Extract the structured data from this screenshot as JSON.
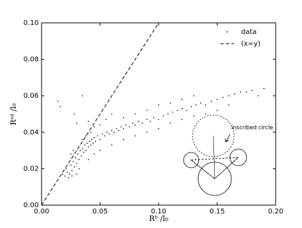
{
  "chart_data": {
    "type": "scatter",
    "xlabel": "Rᵇ /l₀",
    "ylabel": "Rˢᵈ /l₀",
    "xlim": [
      0,
      0.2
    ],
    "ylim": [
      0,
      0.1
    ],
    "xticks": [
      {
        "value": 0,
        "label": "0.00"
      },
      {
        "value": 0.05,
        "label": "0.05"
      },
      {
        "value": 0.1,
        "label": "0.10"
      },
      {
        "value": 0.15,
        "label": "0.15"
      },
      {
        "value": 0.2,
        "label": "0.20"
      }
    ],
    "yticks": [
      {
        "value": 0,
        "label": "0.00"
      },
      {
        "value": 0.02,
        "label": "0.02"
      },
      {
        "value": 0.04,
        "label": "0.04"
      },
      {
        "value": 0.06,
        "label": "0.06"
      },
      {
        "value": 0.08,
        "label": "0.08"
      },
      {
        "value": 0.1,
        "label": "0.10"
      }
    ],
    "legend": "upper right",
    "annotation": "inscribed circle",
    "series": [
      {
        "name": "data",
        "color": "#000000",
        "style": "points",
        "x": [
          0.018,
          0.02,
          0.022,
          0.021,
          0.024,
          0.025,
          0.026,
          0.027,
          0.028,
          0.029,
          0.03,
          0.031,
          0.032,
          0.033,
          0.034,
          0.035,
          0.036,
          0.037,
          0.038,
          0.039,
          0.04,
          0.041,
          0.042,
          0.043,
          0.044,
          0.045,
          0.046,
          0.048,
          0.05,
          0.052,
          0.054,
          0.056,
          0.058,
          0.06,
          0.062,
          0.064,
          0.066,
          0.068,
          0.07,
          0.072,
          0.075,
          0.078,
          0.08,
          0.083,
          0.086,
          0.09,
          0.093,
          0.096,
          0.1,
          0.104,
          0.108,
          0.112,
          0.116,
          0.12,
          0.124,
          0.128,
          0.132,
          0.136,
          0.14,
          0.145,
          0.15,
          0.155,
          0.16,
          0.165,
          0.17,
          0.175,
          0.18,
          0.19,
          0.185,
          0.014,
          0.016,
          0.035,
          0.028,
          0.03,
          0.04,
          0.045,
          0.05,
          0.055,
          0.042,
          0.038,
          0.06,
          0.07,
          0.08,
          0.09,
          0.1,
          0.11,
          0.12,
          0.13,
          0.035,
          0.032,
          0.04,
          0.045,
          0.05,
          0.06,
          0.07,
          0.08,
          0.09,
          0.1,
          0.11,
          0.12,
          0.13,
          0.14,
          0.15,
          0.16,
          0.023,
          0.026,
          0.03,
          0.027,
          0.025
        ],
        "values": [
          0.017,
          0.016,
          0.018,
          0.02,
          0.017,
          0.022,
          0.019,
          0.024,
          0.021,
          0.026,
          0.023,
          0.028,
          0.025,
          0.03,
          0.027,
          0.031,
          0.029,
          0.033,
          0.03,
          0.034,
          0.032,
          0.035,
          0.033,
          0.036,
          0.034,
          0.037,
          0.035,
          0.038,
          0.036,
          0.039,
          0.038,
          0.04,
          0.039,
          0.041,
          0.04,
          0.042,
          0.041,
          0.043,
          0.042,
          0.044,
          0.043,
          0.045,
          0.044,
          0.046,
          0.045,
          0.047,
          0.046,
          0.048,
          0.047,
          0.049,
          0.05,
          0.051,
          0.052,
          0.053,
          0.052,
          0.054,
          0.055,
          0.056,
          0.055,
          0.057,
          0.058,
          0.059,
          0.06,
          0.061,
          0.062,
          0.062,
          0.063,
          0.064,
          0.06,
          0.057,
          0.054,
          0.06,
          0.05,
          0.045,
          0.046,
          0.043,
          0.044,
          0.047,
          0.04,
          0.038,
          0.05,
          0.048,
          0.05,
          0.052,
          0.055,
          0.056,
          0.058,
          0.06,
          0.036,
          0.02,
          0.025,
          0.028,
          0.03,
          0.033,
          0.036,
          0.038,
          0.04,
          0.042,
          0.045,
          0.047,
          0.049,
          0.05,
          0.052,
          0.055,
          0.015,
          0.016,
          0.017,
          0.03,
          0.028
        ]
      },
      {
        "name": "(x=y)",
        "color": "#000000",
        "style": "dashed",
        "x": [
          0,
          0.1
        ],
        "values": [
          0,
          0.1
        ]
      }
    ]
  }
}
